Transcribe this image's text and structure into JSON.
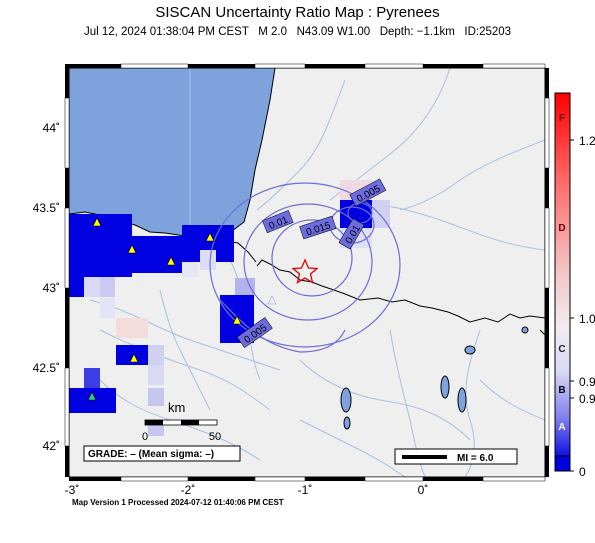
{
  "header": {
    "title": "SISCAN Uncertainty Ratio Map : Pyrenees",
    "subtitle": "Jul 12, 2024 01:38:04 PM CEST   M 2.0   N43.09 W1.00   Depth: −1.1km   ID:25203"
  },
  "map": {
    "lon_ticks": [
      "-3˚",
      "-2˚",
      "-1˚",
      "0˚"
    ],
    "lat_ticks": [
      "44˚",
      "43.5˚",
      "43˚",
      "42.5˚",
      "42˚"
    ],
    "contour_labels": [
      "0.005",
      "0.01",
      "0.015",
      "0.01",
      "0.005"
    ],
    "scale_bar": {
      "unit": "km",
      "start": "0",
      "end": "50"
    },
    "grade_box": "GRADE: – (Mean sigma: –)",
    "mi_box": "MI = 6.0",
    "epicenter": {
      "lat": 43.09,
      "lon": -1.0
    }
  },
  "colorbar": {
    "grade_letters": [
      "F",
      "D",
      "C",
      "B",
      "A"
    ],
    "values": [
      "1.2",
      "1.0",
      "0.9",
      "0.9",
      "0"
    ]
  },
  "footer": "Map Version 1 Processed 2024-07-12 01:40:06 PM CEST",
  "colors": {
    "water": "#7ea3dc",
    "land": "#efefef",
    "high_ratio": "#ff0000",
    "low_ratio": "#0000dd",
    "contour": "#6d6dd8",
    "epicenter": "#dd0000"
  }
}
